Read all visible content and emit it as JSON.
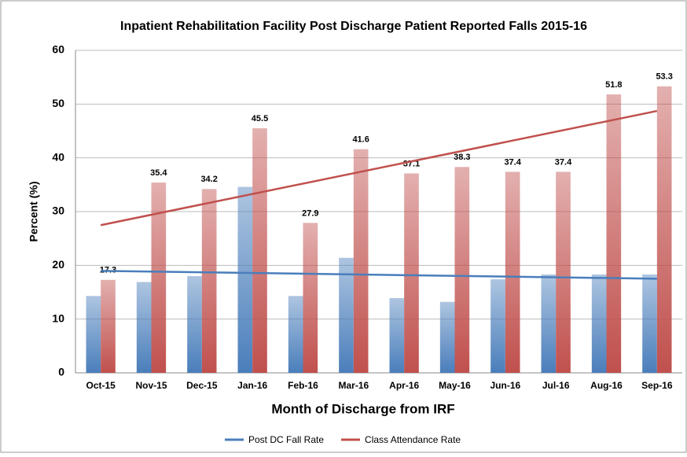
{
  "chart_data": {
    "type": "bar",
    "title": "Inpatient Rehabilitation Facility Post Discharge Patient Reported Falls 2015-16",
    "x_label": "Month of Discharge from IRF",
    "y_label": "Percent (%)",
    "categories": [
      "Oct-15",
      "Nov-15",
      "Dec-15",
      "Jan-16",
      "Feb-16",
      "Mar-16",
      "Apr-16",
      "May-16",
      "Jun-16",
      "Jul-16",
      "Aug-16",
      "Sep-16"
    ],
    "series": [
      {
        "name": "Post DC Fall Rate",
        "color": "#4a7ebb",
        "values": [
          14.3,
          16.9,
          18.0,
          34.6,
          14.3,
          21.4,
          13.9,
          13.2,
          17.4,
          18.3,
          18.3,
          18.3
        ],
        "trendline": true,
        "data_labels": false
      },
      {
        "name": "Class Attendance Rate",
        "color": "#c0504d",
        "values": [
          17.3,
          35.4,
          34.2,
          45.5,
          27.9,
          41.6,
          37.1,
          38.3,
          37.4,
          37.4,
          51.8,
          53.3
        ],
        "trendline": true,
        "data_labels": true
      }
    ],
    "ylim": [
      0,
      60
    ],
    "yticks": [
      0,
      10,
      20,
      30,
      40,
      50,
      60
    ],
    "grid": true,
    "legend": "bottom"
  }
}
